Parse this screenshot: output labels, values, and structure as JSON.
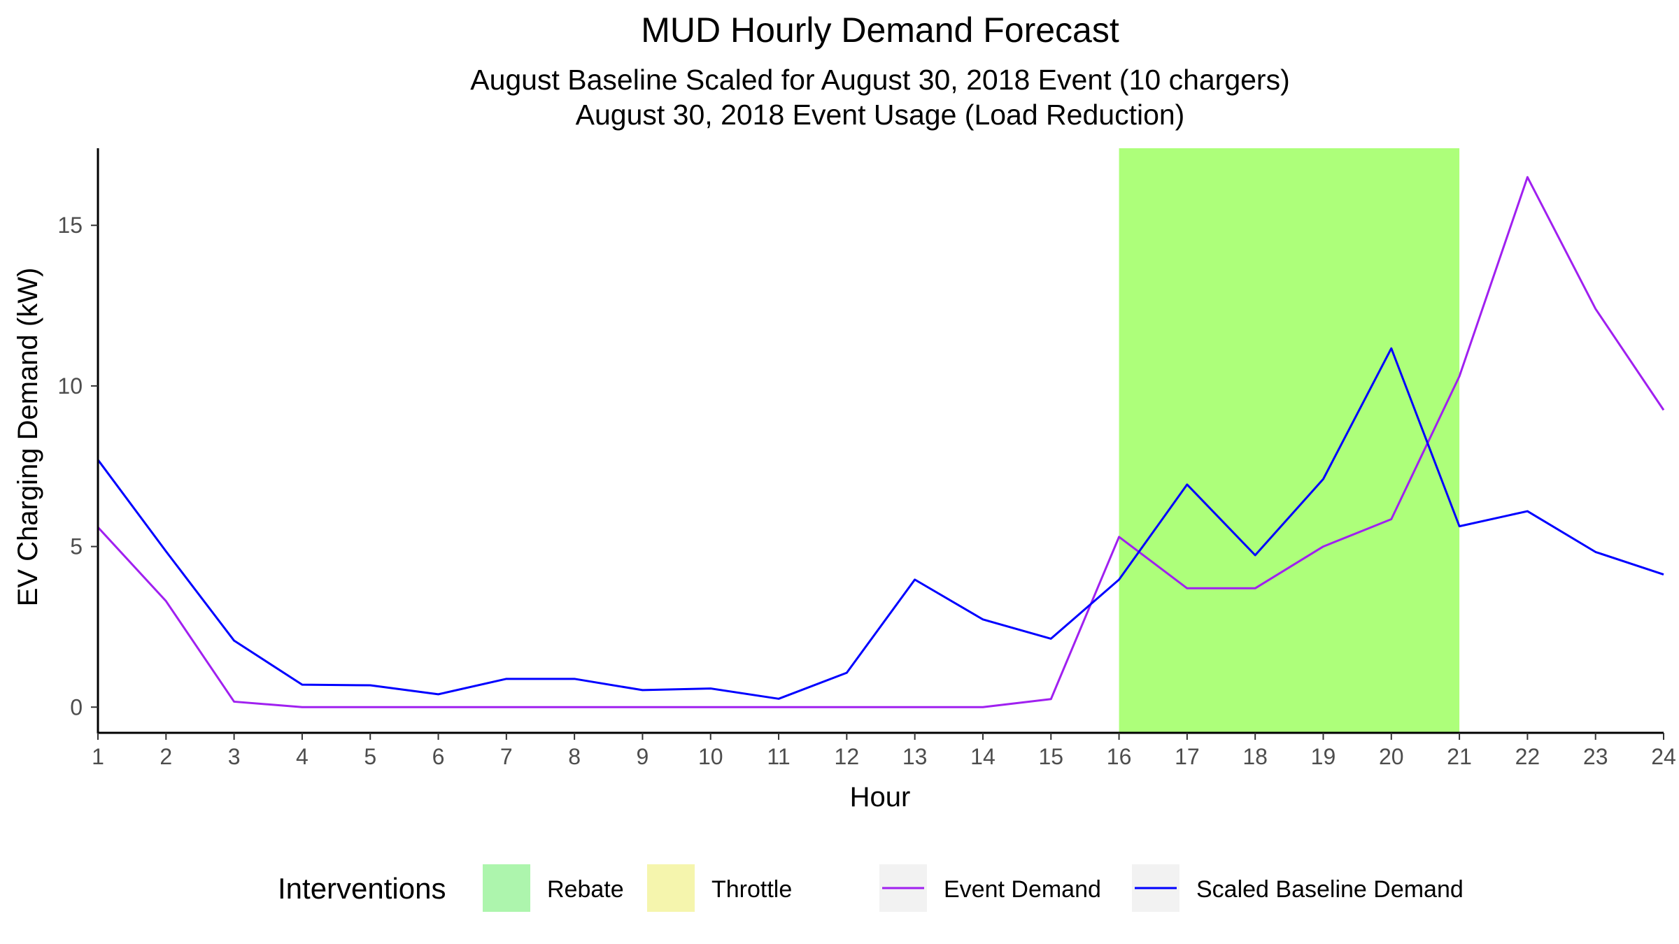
{
  "chart_data": {
    "type": "line",
    "title": "MUD Hourly Demand Forecast",
    "subtitle": [
      "August Baseline Scaled for August 30, 2018 Event (10 chargers)",
      "August 30, 2018 Event Usage (Load Reduction)"
    ],
    "xlabel": "Hour",
    "ylabel": "EV Charging Demand (kW)",
    "x": [
      1,
      2,
      3,
      4,
      5,
      6,
      7,
      8,
      9,
      10,
      11,
      12,
      13,
      14,
      15,
      16,
      17,
      18,
      19,
      20,
      21,
      22,
      23,
      24
    ],
    "xlim": [
      1,
      24
    ],
    "ylim": [
      -0.8,
      17.4
    ],
    "yticks": [
      0,
      5,
      10,
      15
    ],
    "series": [
      {
        "name": "Event Demand",
        "color": "#a020f0",
        "values": [
          5.6,
          3.3,
          0.17,
          0.0,
          0.0,
          0.0,
          0.0,
          0.0,
          0.0,
          0.0,
          0.0,
          0.0,
          0.0,
          0.0,
          0.25,
          5.3,
          3.7,
          3.7,
          5.0,
          5.85,
          10.3,
          16.5,
          12.4,
          9.25
        ]
      },
      {
        "name": "Scaled Baseline Demand",
        "color": "#0000ff",
        "values": [
          7.7,
          4.85,
          2.07,
          0.7,
          0.68,
          0.4,
          0.88,
          0.88,
          0.53,
          0.58,
          0.26,
          1.07,
          3.97,
          2.73,
          2.13,
          3.97,
          6.93,
          4.73,
          7.1,
          11.17,
          5.63,
          6.1,
          4.83,
          4.13
        ]
      }
    ],
    "interventions": [
      {
        "name": "Rebate",
        "start": 16,
        "end": 21,
        "color": "#adff7a"
      }
    ],
    "legend": {
      "placement": "bottom",
      "title": "Interventions",
      "fill_items": [
        {
          "label": "Rebate",
          "color": "#adf5ad"
        },
        {
          "label": "Throttle",
          "color": "#f5f5ad"
        }
      ],
      "line_items": [
        {
          "label": "Event Demand",
          "color": "#a020f0"
        },
        {
          "label": "Scaled Baseline Demand",
          "color": "#0000ff"
        }
      ]
    },
    "grid": false
  }
}
